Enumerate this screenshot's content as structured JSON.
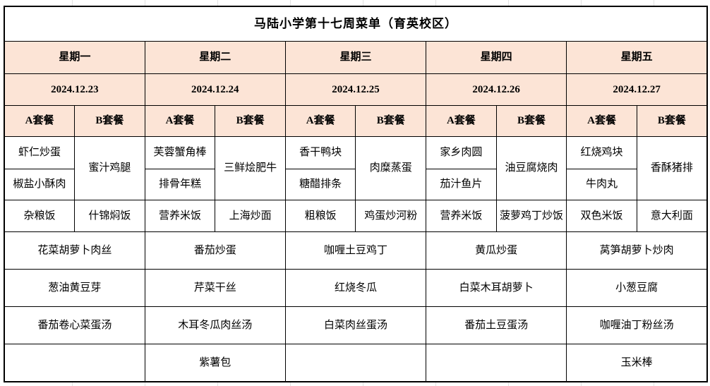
{
  "title": "马陆小学第十七周菜单（育英校区）",
  "labels": {
    "set_a": "A套餐",
    "set_b": "B套餐"
  },
  "colors": {
    "header_bg": "#FCE4D6",
    "border": "#000000",
    "text": "#000000"
  },
  "days": [
    {
      "name": "星期一",
      "date": "2024.12.23",
      "dishes": {
        "a1": "虾仁炒蛋",
        "a2": "椒盐小酥肉",
        "b_main": "蜜汁鸡腿",
        "a_staple": "杂粮饭",
        "b_staple": "什锦焖饭",
        "veg1": "花菜胡萝卜肉丝",
        "veg2": "葱油黄豆芽",
        "soup": "番茄卷心菜蛋汤",
        "extra": ""
      }
    },
    {
      "name": "星期二",
      "date": "2024.12.24",
      "dishes": {
        "a1": "芙蓉蟹角棒",
        "a2": "排骨年糕",
        "b_main": "三鲜烩肥牛",
        "a_staple": "营养米饭",
        "b_staple": "上海炒面",
        "veg1": "番茄炒蛋",
        "veg2": "芹菜干丝",
        "soup": "木耳冬瓜肉丝汤",
        "extra": "紫薯包"
      }
    },
    {
      "name": "星期三",
      "date": "2024.12.25",
      "dishes": {
        "a1": "香干鸭块",
        "a2": "糖醋排条",
        "b_main": "肉糜蒸蛋",
        "a_staple": "粗粮饭",
        "b_staple": "鸡蛋炒河粉",
        "veg1": "咖喱土豆鸡丁",
        "veg2": "红烧冬瓜",
        "soup": "白菜肉丝蛋汤",
        "extra": ""
      }
    },
    {
      "name": "星期四",
      "date": "2024.12.26",
      "dishes": {
        "a1": "家乡肉圆",
        "a2": "茄汁鱼片",
        "b_main": "油豆腐烧肉",
        "a_staple": "营养米饭",
        "b_staple": "菠萝鸡丁炒饭",
        "veg1": "黄瓜炒蛋",
        "veg2": "白菜木耳胡萝卜",
        "soup": "番茄土豆蛋汤",
        "extra": ""
      }
    },
    {
      "name": "星期五",
      "date": "2024.12.27",
      "dishes": {
        "a1": "红烧鸡块",
        "a2": "牛肉丸",
        "b_main": "香酥猪排",
        "a_staple": "双色米饭",
        "b_staple": "意大利面",
        "veg1": "莴笋胡萝卜炒肉",
        "veg2": "小葱豆腐",
        "soup": "咖喱油丁粉丝汤",
        "extra": "玉米棒"
      }
    }
  ]
}
